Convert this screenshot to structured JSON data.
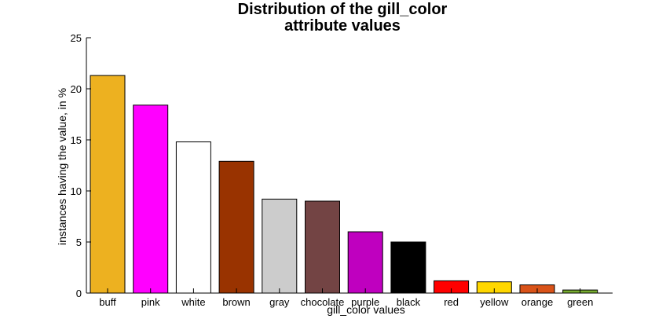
{
  "chart_data": {
    "type": "bar",
    "title_line1": "Distribution of the gill_color",
    "title_line2": "attribute values",
    "xlabel": "gill_color values",
    "ylabel": "instances having the value, in %",
    "ylim": [
      0,
      25
    ],
    "yticks": [
      "0",
      "5",
      "10",
      "15",
      "20",
      "25"
    ],
    "ytick_values": [
      0,
      5,
      10,
      15,
      20,
      25
    ],
    "categories": [
      "buff",
      "pink",
      "white",
      "brown",
      "gray",
      "chocolate",
      "purple",
      "black",
      "red",
      "yellow",
      "orange",
      "green"
    ],
    "values": [
      21.3,
      18.4,
      14.8,
      12.9,
      9.2,
      9.0,
      6.0,
      5.0,
      1.2,
      1.1,
      0.8,
      0.3
    ],
    "colors": [
      "#edb120",
      "#ff00ff",
      "#ffffff",
      "#993300",
      "#cccccc",
      "#734444",
      "#bf00bf",
      "#000000",
      "#ff0000",
      "#ffd700",
      "#d95319",
      "#77ac30"
    ],
    "grid": false,
    "legend": "none"
  }
}
